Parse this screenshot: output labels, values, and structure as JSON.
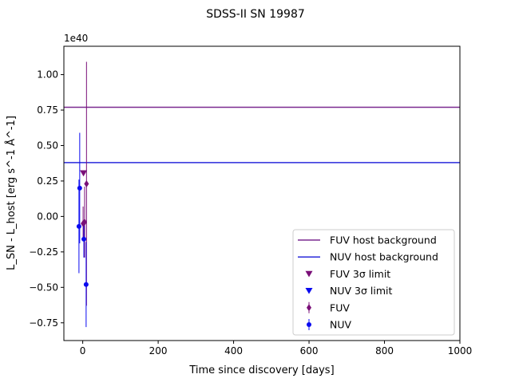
{
  "chart_data": {
    "type": "scatter",
    "title": "SDSS-II SN 19987",
    "xlabel": "Time since discovery [days]",
    "ylabel": "L_SN - L_host [erg s^-1 Å^-1]",
    "y_offset_label": "1e40",
    "y_unit_multiplier": 1e+40,
    "xlim": [
      -50,
      1000
    ],
    "ylim": [
      -0.875,
      1.2
    ],
    "x_ticks": [
      0,
      200,
      400,
      600,
      800,
      1000
    ],
    "x_tick_labels": [
      "0",
      "200",
      "400",
      "600",
      "800",
      "1000"
    ],
    "y_ticks": [
      -0.75,
      -0.5,
      -0.25,
      0.0,
      0.25,
      0.5,
      0.75,
      1.0
    ],
    "y_tick_labels": [
      "−0.75",
      "−0.50",
      "−0.25",
      "0.00",
      "0.25",
      "0.50",
      "0.75",
      "1.00"
    ],
    "grid": false,
    "legend_position": "lower-right",
    "host_lines": [
      {
        "name": "FUV host background",
        "y": 0.77,
        "color": "#7b2a90"
      },
      {
        "name": "NUV host background",
        "y": 0.38,
        "color": "#2a2adb"
      }
    ],
    "limits": [
      {
        "name": "FUV 3σ limit",
        "color": "#7a0f78",
        "points": [
          {
            "x": 2,
            "y": 0.305
          }
        ]
      },
      {
        "name": "NUV 3σ limit",
        "color": "#0a0af0",
        "points": []
      }
    ],
    "series": [
      {
        "name": "FUV",
        "color": "#7a0f78",
        "marker": "diamond",
        "points": [
          {
            "x": 10,
            "y": 0.23,
            "err": 0.86
          },
          {
            "x": 5,
            "y": -0.04,
            "err": 0.25
          },
          {
            "x": 1,
            "y": -0.05,
            "err": 0.12
          }
        ]
      },
      {
        "name": "NUV",
        "color": "#0a0af0",
        "marker": "circle",
        "points": [
          {
            "x": -8,
            "y": 0.2,
            "err": 0.39
          },
          {
            "x": -10,
            "y": -0.07,
            "err": 0.33
          },
          {
            "x": 3,
            "y": -0.16,
            "err": 0.13
          },
          {
            "x": 9,
            "y": -0.48,
            "err": 0.3
          }
        ]
      }
    ]
  }
}
